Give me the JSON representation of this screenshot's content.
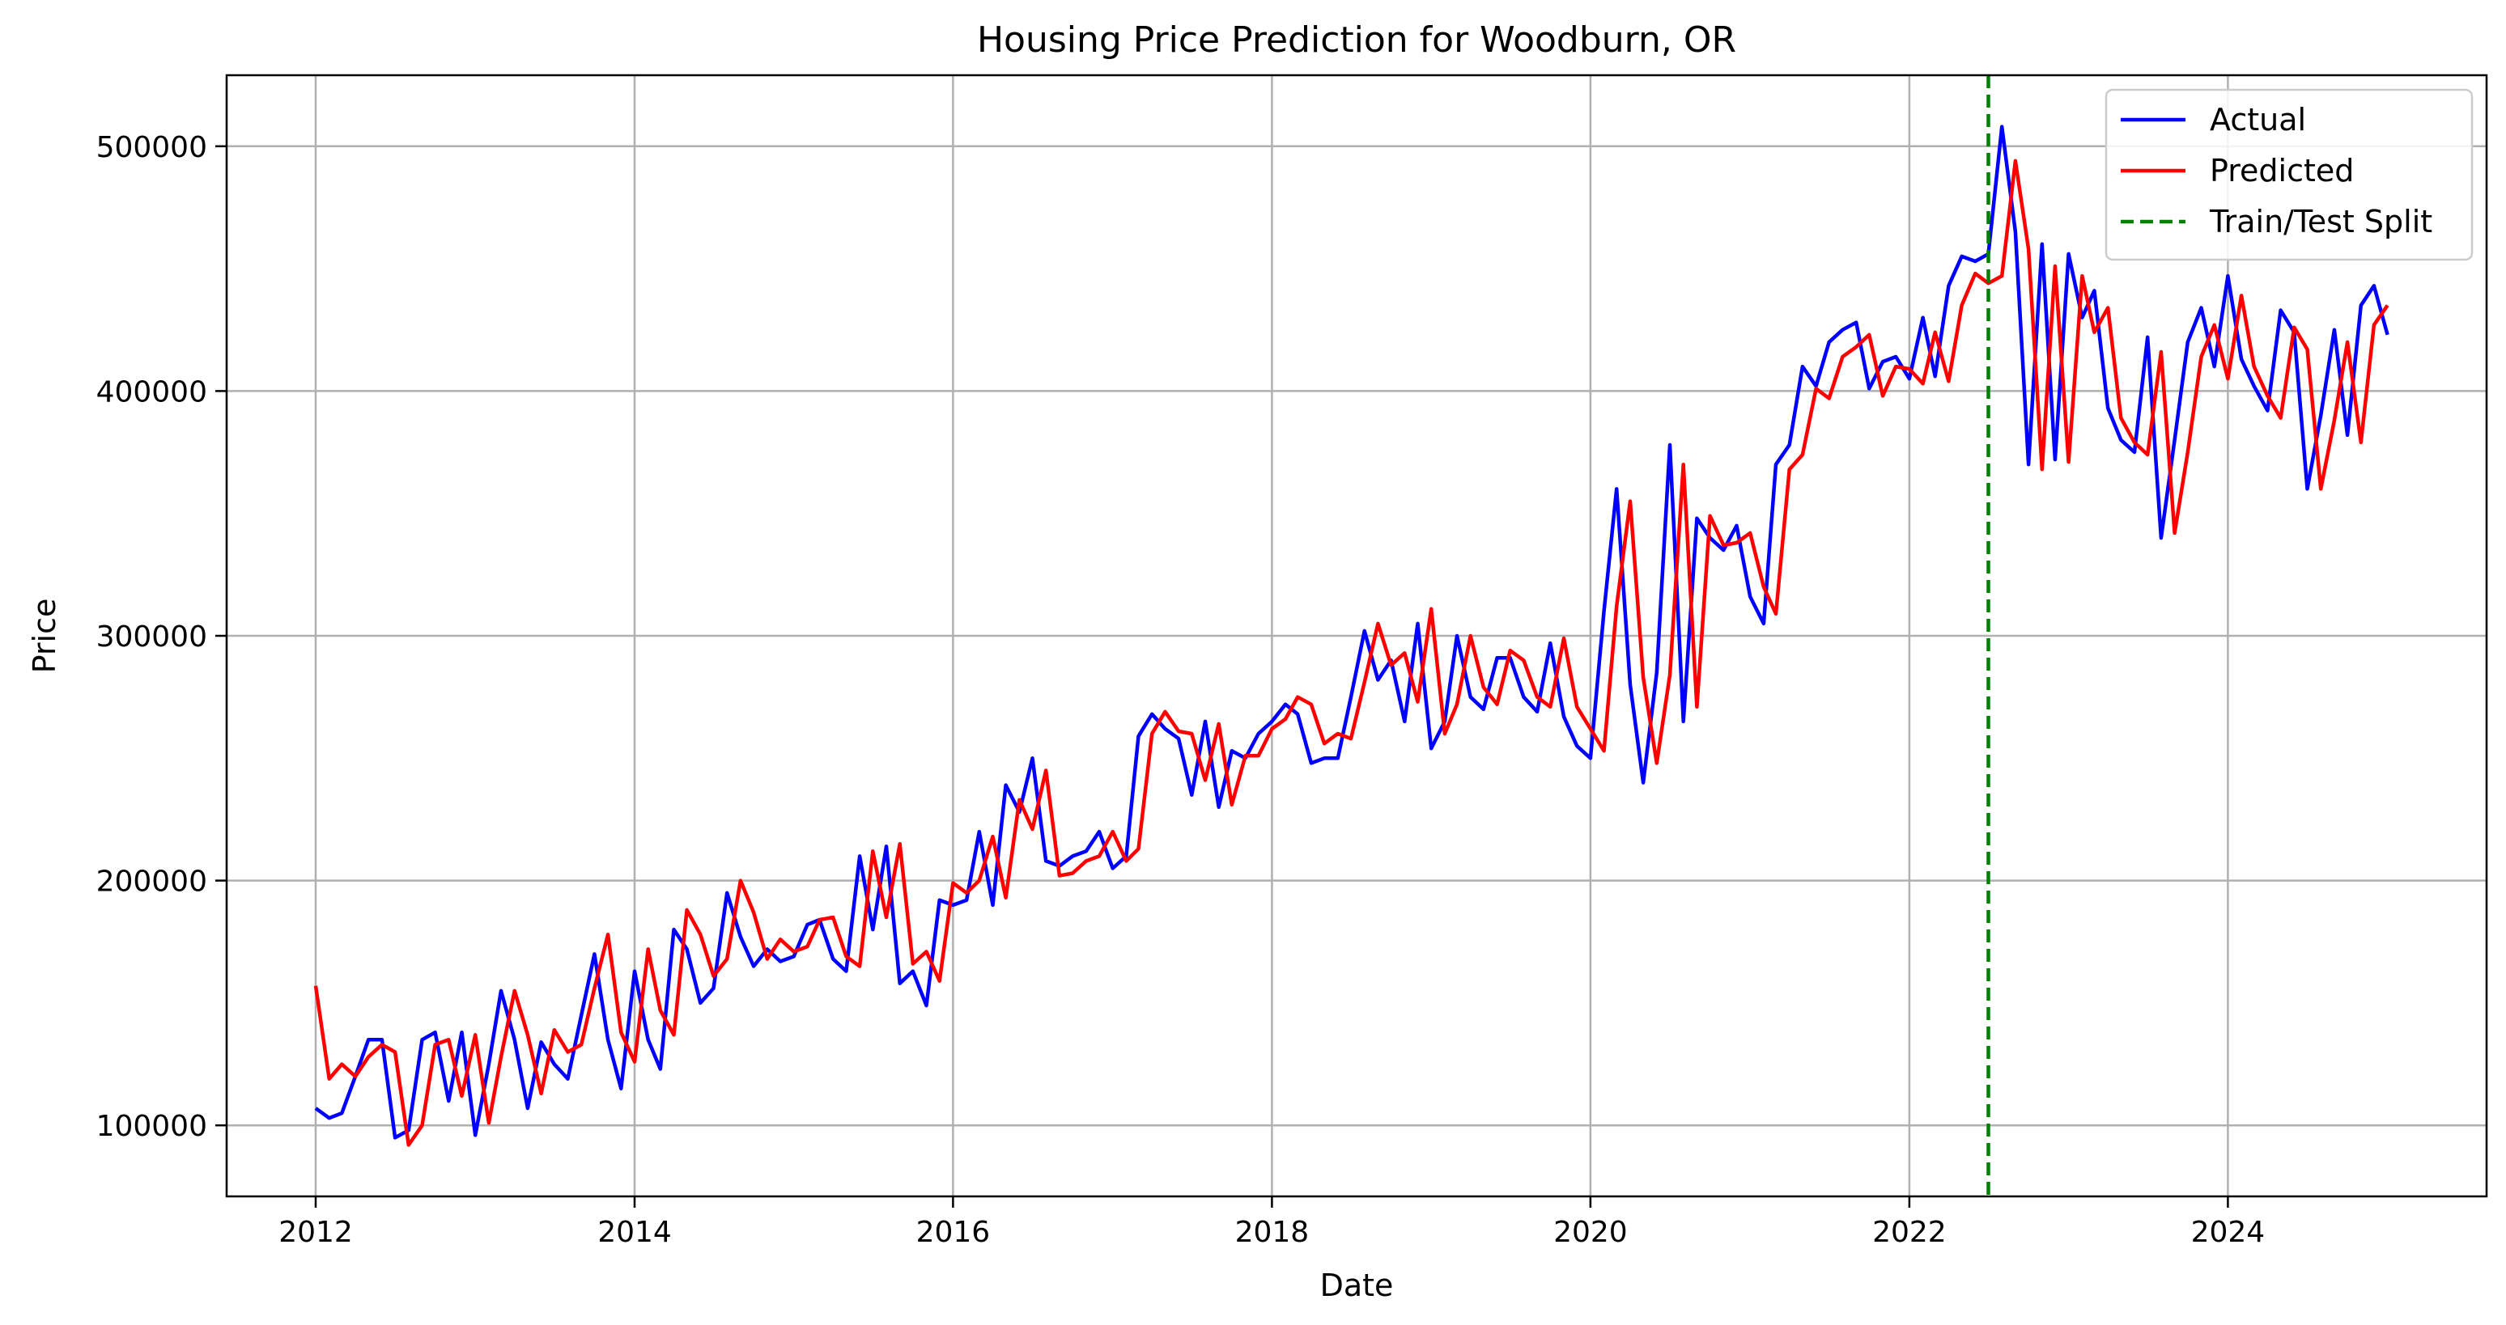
{
  "chart_data": {
    "type": "line",
    "title": "Housing Price Prediction for Woodburn, OR",
    "xlabel": "Date",
    "ylabel": "Price",
    "xlim": [
      "2011-06-11",
      "2025-08-16"
    ],
    "ylim": [
      71000,
      529000
    ],
    "x_ticks": [
      "2012",
      "2014",
      "2016",
      "2018",
      "2020",
      "2022",
      "2024"
    ],
    "y_ticks": [
      100000,
      200000,
      300000,
      400000,
      500000
    ],
    "grid": true,
    "legend_position": "top-right",
    "x": [
      "2012-01",
      "2012-02",
      "2012-03",
      "2012-04",
      "2012-05",
      "2012-06",
      "2012-07",
      "2012-08",
      "2012-09",
      "2012-10",
      "2012-11",
      "2012-12",
      "2013-01",
      "2013-02",
      "2013-03",
      "2013-04",
      "2013-05",
      "2013-06",
      "2013-07",
      "2013-08",
      "2013-09",
      "2013-10",
      "2013-11",
      "2013-12",
      "2014-01",
      "2014-02",
      "2014-03",
      "2014-04",
      "2014-05",
      "2014-06",
      "2014-07",
      "2014-08",
      "2014-09",
      "2014-10",
      "2014-11",
      "2014-12",
      "2015-01",
      "2015-02",
      "2015-03",
      "2015-04",
      "2015-05",
      "2015-06",
      "2015-07",
      "2015-08",
      "2015-09",
      "2015-10",
      "2015-11",
      "2015-12",
      "2016-01",
      "2016-02",
      "2016-03",
      "2016-04",
      "2016-05",
      "2016-06",
      "2016-07",
      "2016-08",
      "2016-09",
      "2016-10",
      "2016-11",
      "2016-12",
      "2017-01",
      "2017-02",
      "2017-03",
      "2017-04",
      "2017-05",
      "2017-06",
      "2017-07",
      "2017-08",
      "2017-09",
      "2017-10",
      "2017-11",
      "2017-12",
      "2018-01",
      "2018-02",
      "2018-03",
      "2018-04",
      "2018-05",
      "2018-06",
      "2018-07",
      "2018-08",
      "2018-09",
      "2018-10",
      "2018-11",
      "2018-12",
      "2019-01",
      "2019-02",
      "2019-03",
      "2019-04",
      "2019-05",
      "2019-06",
      "2019-07",
      "2019-08",
      "2019-09",
      "2019-10",
      "2019-11",
      "2019-12",
      "2020-01",
      "2020-02",
      "2020-03",
      "2020-04",
      "2020-05",
      "2020-06",
      "2020-07",
      "2020-08",
      "2020-09",
      "2020-10",
      "2020-11",
      "2020-12",
      "2021-01",
      "2021-02",
      "2021-03",
      "2021-04",
      "2021-05",
      "2021-06",
      "2021-07",
      "2021-08",
      "2021-09",
      "2021-10",
      "2021-11",
      "2021-12",
      "2022-01",
      "2022-02",
      "2022-03",
      "2022-04",
      "2022-05",
      "2022-06",
      "2022-07",
      "2022-08",
      "2022-09",
      "2022-10",
      "2022-11",
      "2022-12",
      "2023-01",
      "2023-02",
      "2023-03",
      "2023-04",
      "2023-05",
      "2023-06",
      "2023-07",
      "2023-08",
      "2023-09",
      "2023-10",
      "2023-11",
      "2023-12",
      "2024-01",
      "2024-02",
      "2024-03",
      "2024-04",
      "2024-05",
      "2024-06",
      "2024-07",
      "2024-08",
      "2024-09",
      "2024-10",
      "2024-11",
      "2024-12",
      "2025-01"
    ],
    "series": [
      {
        "name": "Actual",
        "color": "#0000ff",
        "values": [
          107000,
          103000,
          105000,
          120000,
          135000,
          135000,
          95000,
          98000,
          135000,
          138000,
          110000,
          138000,
          96000,
          125000,
          155000,
          135000,
          107000,
          134000,
          125000,
          119000,
          145000,
          170000,
          135000,
          115000,
          163000,
          135000,
          123000,
          180000,
          172000,
          150000,
          156000,
          195000,
          177000,
          165000,
          172000,
          167000,
          169000,
          182000,
          184000,
          168000,
          163000,
          210000,
          180000,
          214000,
          158000,
          163000,
          149000,
          192000,
          190000,
          192000,
          220000,
          190000,
          239000,
          228000,
          250000,
          208000,
          206000,
          210000,
          212000,
          220000,
          205000,
          210000,
          259000,
          268000,
          262000,
          258000,
          235000,
          265000,
          230000,
          253000,
          250000,
          260000,
          265000,
          272000,
          268000,
          248000,
          250000,
          250000,
          275000,
          302000,
          282000,
          290000,
          265000,
          305000,
          254000,
          265000,
          300000,
          275000,
          270000,
          291000,
          291000,
          275000,
          269000,
          297000,
          267000,
          255000,
          250000,
          310000,
          360000,
          280000,
          240000,
          285000,
          378000,
          265000,
          348000,
          340000,
          335000,
          345000,
          316000,
          305000,
          370000,
          378000,
          410000,
          402000,
          420000,
          425000,
          428000,
          401000,
          412000,
          414000,
          405000,
          430000,
          406000,
          443000,
          455000,
          453000,
          456000,
          508000,
          465000,
          370000,
          460000,
          372000,
          456000,
          430000,
          441000,
          393000,
          380000,
          375000,
          422000,
          340000,
          380000,
          420000,
          434000,
          410000,
          447000,
          413000,
          402000,
          392000,
          433000,
          424000,
          360000,
          390000,
          425000,
          382000,
          435000,
          443000,
          423000
        ]
      },
      {
        "name": "Predicted",
        "color": "#ff0000",
        "values": [
          157000,
          119000,
          125000,
          120000,
          128000,
          133000,
          130000,
          92000,
          100000,
          133000,
          135000,
          112000,
          137000,
          101000,
          128000,
          155000,
          137000,
          113000,
          139000,
          130000,
          133000,
          156000,
          178000,
          138000,
          126000,
          172000,
          147000,
          137000,
          188000,
          178000,
          161000,
          168000,
          200000,
          187000,
          168000,
          176000,
          171000,
          173000,
          184000,
          185000,
          169000,
          165000,
          212000,
          185000,
          215000,
          166000,
          171000,
          159000,
          199000,
          195000,
          200000,
          218000,
          193000,
          233000,
          221000,
          245000,
          202000,
          203000,
          208000,
          210000,
          220000,
          208000,
          213000,
          260000,
          269000,
          261000,
          260000,
          241000,
          264000,
          231000,
          251000,
          251000,
          262000,
          266000,
          275000,
          272000,
          256000,
          260000,
          258000,
          281000,
          305000,
          288000,
          293000,
          273000,
          311000,
          260000,
          272000,
          300000,
          279000,
          272000,
          294000,
          290000,
          275000,
          271000,
          299000,
          271000,
          262000,
          253000,
          312000,
          355000,
          283000,
          248000,
          284000,
          370000,
          271000,
          349000,
          337000,
          338000,
          342000,
          320000,
          309000,
          368000,
          374000,
          401000,
          397000,
          414000,
          418000,
          423000,
          398000,
          410000,
          409000,
          403000,
          424000,
          404000,
          435000,
          448000,
          444000,
          447000,
          494000,
          458000,
          368000,
          451000,
          371000,
          447000,
          424000,
          434000,
          389000,
          379000,
          374000,
          416000,
          342000,
          375000,
          414000,
          427000,
          405000,
          439000,
          410000,
          398000,
          389000,
          426000,
          417000,
          360000,
          388000,
          420000,
          379000,
          427000,
          435000
        ]
      },
      {
        "name": "Train/Test Split",
        "color": "#008000",
        "x": "2022-07"
      }
    ]
  }
}
